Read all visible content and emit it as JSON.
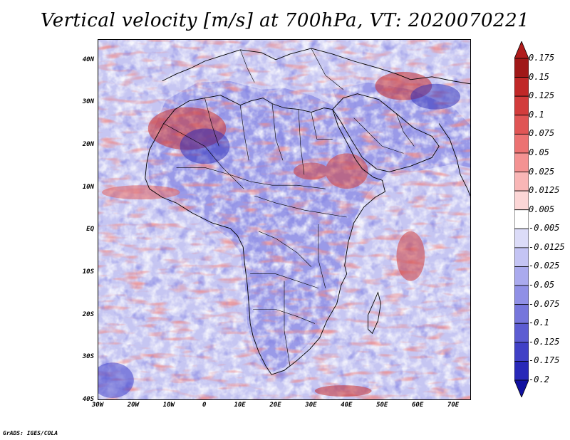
{
  "title": "Vertical velocity [m/s] at 700hPa, VT: 2020070221",
  "credit": "GrADS: IGES/COLA",
  "map": {
    "lon_range": [
      -30,
      75
    ],
    "lat_range": [
      -40,
      45
    ],
    "lat_labels": [
      {
        "lat": 40,
        "text": "40N"
      },
      {
        "lat": 30,
        "text": "30N"
      },
      {
        "lat": 20,
        "text": "20N"
      },
      {
        "lat": 10,
        "text": "10N"
      },
      {
        "lat": 0,
        "text": "EQ"
      },
      {
        "lat": -10,
        "text": "10S"
      },
      {
        "lat": -20,
        "text": "20S"
      },
      {
        "lat": -30,
        "text": "30S"
      },
      {
        "lat": -40,
        "text": "40S"
      }
    ],
    "lon_labels": [
      {
        "lon": -30,
        "text": "30W"
      },
      {
        "lon": -20,
        "text": "20W"
      },
      {
        "lon": -10,
        "text": "10W"
      },
      {
        "lon": 0,
        "text": "0"
      },
      {
        "lon": 10,
        "text": "10E"
      },
      {
        "lon": 20,
        "text": "20E"
      },
      {
        "lon": 30,
        "text": "30E"
      },
      {
        "lon": 40,
        "text": "40E"
      },
      {
        "lon": 50,
        "text": "50E"
      },
      {
        "lon": 60,
        "text": "60E"
      },
      {
        "lon": 70,
        "text": "70E"
      }
    ]
  },
  "colorbar": {
    "levels": [
      {
        "text": "0.175",
        "color": "#a01818"
      },
      {
        "text": "0.15",
        "color": "#c02828"
      },
      {
        "text": "0.125",
        "color": "#d23c3c"
      },
      {
        "text": "0.1",
        "color": "#e05555"
      },
      {
        "text": "0.075",
        "color": "#ec7272"
      },
      {
        "text": "0.05",
        "color": "#f49292"
      },
      {
        "text": "0.025",
        "color": "#f9b6b6"
      },
      {
        "text": "0.0125",
        "color": "#fcd6d6"
      },
      {
        "text": "0.005",
        "color": "#ffffff"
      },
      {
        "text": "-0.005",
        "color": "#dcdcf8"
      },
      {
        "text": "-0.0125",
        "color": "#c4c4f4"
      },
      {
        "text": "-0.025",
        "color": "#aaaaee"
      },
      {
        "text": "-0.05",
        "color": "#9090e6"
      },
      {
        "text": "-0.075",
        "color": "#7676dc"
      },
      {
        "text": "-0.1",
        "color": "#5c5cd2"
      },
      {
        "text": "-0.125",
        "color": "#4040c6"
      },
      {
        "text": "-0.175",
        "color": "#2828b8"
      },
      {
        "text": "-0.2",
        "color": "#1a1aa2"
      }
    ],
    "top_color": "#b01c1c",
    "bottom_color": "#1010a0"
  },
  "colors": {
    "land_blue": "#8f8fe8",
    "ocean_base": "#c8c8f4",
    "red_patch": "#e06060",
    "deep_blue": "#3a3ac8",
    "boundary": "#000000"
  }
}
